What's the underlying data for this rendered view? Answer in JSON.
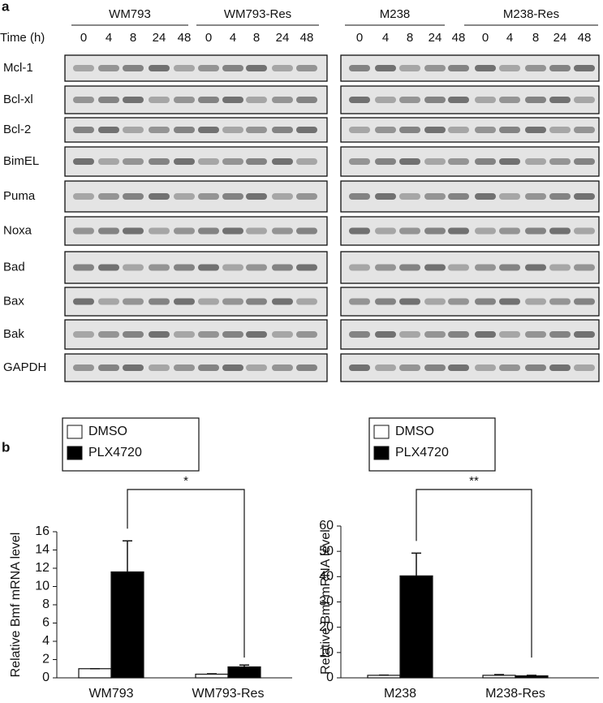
{
  "panel_a": {
    "label": "a",
    "time_label": "Time (h)",
    "groups": [
      {
        "name": "WM793",
        "times": [
          0,
          4,
          8,
          24,
          48
        ]
      },
      {
        "name": "WM793-Res",
        "times": [
          0,
          4,
          8,
          24,
          48
        ]
      },
      {
        "name": "M238",
        "times": [
          0,
          4,
          8,
          24,
          48
        ]
      },
      {
        "name": "M238-Res",
        "times": [
          0,
          4,
          8,
          24,
          48
        ]
      }
    ],
    "proteins": [
      "Mcl-1",
      "Bcl-xl",
      "Bcl-2",
      "BimEL",
      "Puma",
      "Noxa",
      "Bad",
      "Bax",
      "Bak",
      "GAPDH"
    ]
  },
  "panel_b": {
    "label": "b"
  },
  "chart_data": [
    {
      "type": "bar",
      "y_label": "Relative Bmf mRNA level",
      "categories": [
        "WM793",
        "WM793-Res"
      ],
      "series": [
        {
          "name": "DMSO",
          "color": "#ffffff",
          "values": [
            1,
            0.4
          ],
          "errors": [
            0,
            0.05
          ]
        },
        {
          "name": "PLX4720",
          "color": "#000000",
          "values": [
            11.6,
            1.2
          ],
          "errors": [
            3.4,
            0.2
          ]
        }
      ],
      "ylim": [
        0,
        16
      ],
      "yticks": [
        0,
        2,
        4,
        6,
        8,
        10,
        12,
        14,
        16
      ],
      "annotation": "*"
    },
    {
      "type": "bar",
      "y_label": "Relative Bmf mRNA level",
      "categories": [
        "M238",
        "M238-Res"
      ],
      "series": [
        {
          "name": "DMSO",
          "color": "#ffffff",
          "values": [
            1,
            1
          ],
          "errors": [
            0.1,
            0.3
          ]
        },
        {
          "name": "PLX4720",
          "color": "#000000",
          "values": [
            40.3,
            0.8
          ],
          "errors": [
            9,
            0.2
          ]
        }
      ],
      "ylim": [
        0,
        60
      ],
      "yticks": [
        0,
        10,
        20,
        30,
        40,
        50,
        60
      ],
      "annotation": "**"
    }
  ]
}
